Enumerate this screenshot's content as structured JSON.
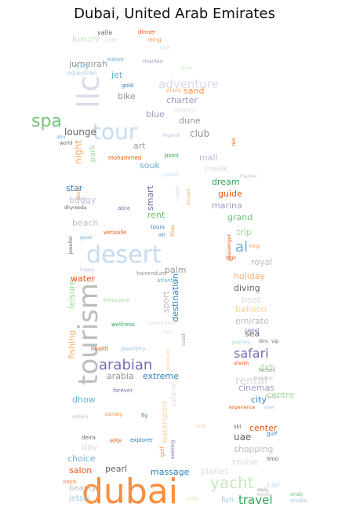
{
  "title": "Dubai, United Arab Emirates",
  "words": [
    {
      "t": "dubai",
      "c": "#fd8d3c"
    },
    {
      "t": "tourism",
      "c": "#bdbdbd"
    },
    {
      "t": "desert",
      "c": "#c6dbef"
    },
    {
      "t": "tour",
      "c": "#c6dbef"
    },
    {
      "t": "llc",
      "c": "#dadaeb"
    },
    {
      "t": "spa",
      "c": "#74c476"
    },
    {
      "t": "yacht",
      "c": "#c7e9c0"
    },
    {
      "t": "arabian",
      "c": "#756bb1"
    },
    {
      "t": "safari",
      "c": "#756bb1"
    },
    {
      "t": "adventure",
      "c": "#dadaeb"
    },
    {
      "t": "travel",
      "c": "#31a354"
    },
    {
      "t": "al",
      "c": "#6baed6"
    },
    {
      "t": "rental",
      "c": "#d9d9d9"
    },
    {
      "t": "jumeirah",
      "c": "#969696"
    },
    {
      "t": "luxury",
      "c": "#c7e9c0"
    },
    {
      "t": "sky",
      "c": "#9ecae1"
    },
    {
      "t": "jet",
      "c": "#6baed6"
    },
    {
      "t": "bike",
      "c": "#969696"
    },
    {
      "t": "charter",
      "c": "#9e9ac8"
    },
    {
      "t": "sand",
      "c": "#fd8d3c"
    },
    {
      "t": "blue",
      "c": "#9e9ac8"
    },
    {
      "t": "dune",
      "c": "#969696"
    },
    {
      "t": "club",
      "c": "#969696"
    },
    {
      "t": "lounge",
      "c": "#636363"
    },
    {
      "t": "night",
      "c": "#fdae6b"
    },
    {
      "t": "park",
      "c": "#a1d99b"
    },
    {
      "t": "art",
      "c": "#969696"
    },
    {
      "t": "souk",
      "c": "#6baed6"
    },
    {
      "t": "mall",
      "c": "#bcbddc"
    },
    {
      "t": "creek",
      "c": "#d9d9d9"
    },
    {
      "t": "dream",
      "c": "#31a354"
    },
    {
      "t": "guide",
      "c": "#e6550d"
    },
    {
      "t": "star",
      "c": "#3182bd"
    },
    {
      "t": "buggy",
      "c": "#bcbddc"
    },
    {
      "t": "smart",
      "c": "#756bb1"
    },
    {
      "t": "rent",
      "c": "#74c476"
    },
    {
      "t": "marina",
      "c": "#9e9ac8"
    },
    {
      "t": "grand",
      "c": "#74c476"
    },
    {
      "t": "beach",
      "c": "#bdbdbd"
    },
    {
      "t": "trip",
      "c": "#a1d99b"
    },
    {
      "t": "palm",
      "c": "#969696"
    },
    {
      "t": "royal",
      "c": "#bdbdbd"
    },
    {
      "t": "water",
      "c": "#e6550d"
    },
    {
      "t": "holiday",
      "c": "#fdae6b"
    },
    {
      "t": "diving",
      "c": "#636363"
    },
    {
      "t": "boat",
      "c": "#d9d9d9"
    },
    {
      "t": "balloon",
      "c": "#fdd0a2"
    },
    {
      "t": "emirate",
      "c": "#bdbdbd"
    },
    {
      "t": "sea",
      "c": "#636363"
    },
    {
      "t": "leisure",
      "c": "#a1d99b"
    },
    {
      "t": "sport",
      "c": "#bdbdbd"
    },
    {
      "t": "destination",
      "c": "#3182bd"
    },
    {
      "t": "fishing",
      "c": "#fdae6b"
    },
    {
      "t": "arabia",
      "c": "#969696"
    },
    {
      "t": "extreme",
      "c": "#3182bd"
    },
    {
      "t": "dxb",
      "c": "#a1d99b"
    },
    {
      "t": "cinemas",
      "c": "#9e9ac8"
    },
    {
      "t": "city",
      "c": "#3182bd"
    },
    {
      "t": "centre",
      "c": "#a1d99b"
    },
    {
      "t": "center",
      "c": "#e6550d"
    },
    {
      "t": "dhow",
      "c": "#6baed6"
    },
    {
      "t": "uae",
      "c": "#636363"
    },
    {
      "t": "day",
      "c": "#dadaeb"
    },
    {
      "t": "shopping",
      "c": "#bdbdbd"
    },
    {
      "t": "choice",
      "c": "#6baed6"
    },
    {
      "t": "cruise",
      "c": "#d9d9d9"
    },
    {
      "t": "salon",
      "c": "#e6550d"
    },
    {
      "t": "pearl",
      "c": "#636363"
    },
    {
      "t": "massage",
      "c": "#3182bd"
    },
    {
      "t": "planet",
      "c": "#dadaeb"
    },
    {
      "t": "car",
      "c": "#c6dbef"
    },
    {
      "t": "beauty",
      "c": "#bdbdbd"
    },
    {
      "t": "jetski",
      "c": "#9ecae1"
    },
    {
      "t": "fun",
      "c": "#9ecae1"
    },
    {
      "t": "watersport",
      "c": "#fdd0a2"
    },
    {
      "t": "safaris",
      "c": "#dadaeb"
    },
    {
      "t": "yalla",
      "c": "#636363"
    },
    {
      "t": "dinner",
      "c": "#e6550d"
    },
    {
      "t": "june",
      "c": "#d9d9d9"
    },
    {
      "t": "ming",
      "c": "#fd8d3c"
    },
    {
      "t": "kite",
      "c": "#c6dbef"
    },
    {
      "t": "indoor",
      "c": "#6baed6"
    },
    {
      "t": "equestrian",
      "c": "#9ecae1"
    },
    {
      "t": "manlax",
      "c": "#9e9ac8"
    },
    {
      "t": "quad",
      "c": "#c7e9c0"
    },
    {
      "t": "gold",
      "c": "#3182bd"
    },
    {
      "t": "plaza",
      "c": "#fdae6b"
    },
    {
      "t": "company",
      "c": "#d9d9d9"
    },
    {
      "t": "legend",
      "c": "#bcbddc"
    },
    {
      "t": "red",
      "c": "#e6550d"
    },
    {
      "t": "abu",
      "c": "#6baed6"
    },
    {
      "t": "world",
      "c": "#636363"
    },
    {
      "t": "marine",
      "c": "#bdbdbd"
    },
    {
      "t": "mohammed",
      "c": "#e6550d"
    },
    {
      "t": "point",
      "c": "#31a354"
    },
    {
      "t": "golden",
      "c": "#c6dbef"
    },
    {
      "t": "couple",
      "c": "#d9d9d9"
    },
    {
      "t": "escape",
      "c": "#fdae6b"
    },
    {
      "t": "seven",
      "c": "#fd8d3c"
    },
    {
      "t": "burj",
      "c": "#bdbdbd"
    },
    {
      "t": "abra",
      "c": "#756bb1"
    },
    {
      "t": "dhyreeda",
      "c": "#636363"
    },
    {
      "t": "tours",
      "c": "#3182bd"
    },
    {
      "t": "air",
      "c": "#3182bd"
    },
    {
      "t": "khan",
      "c": "#fd8d3c"
    },
    {
      "t": "versaille",
      "c": "#e6550d"
    },
    {
      "t": "good",
      "c": "#6baed6"
    },
    {
      "t": "jeweller",
      "c": "#636363"
    },
    {
      "t": "zoassenger",
      "c": "#e6550d"
    },
    {
      "t": "king",
      "c": "#fd8d3c"
    },
    {
      "t": "high",
      "c": "#e6550d"
    },
    {
      "t": "happy",
      "c": "#bcbddc"
    },
    {
      "t": "hairenduro",
      "c": "#969696"
    },
    {
      "t": "atlantis",
      "c": "#6baed6"
    },
    {
      "t": "limousine",
      "c": "#a1d99b"
    },
    {
      "t": "wellness",
      "c": "#31a354"
    },
    {
      "t": "connection",
      "c": "#d9d9d9"
    },
    {
      "t": "roya",
      "c": "#d9d9d9"
    },
    {
      "t": "camel",
      "c": "#756bb1"
    },
    {
      "t": "journey",
      "c": "#9ecae1"
    },
    {
      "t": "dmc",
      "c": "#636363"
    },
    {
      "t": "vip",
      "c": "#636363"
    },
    {
      "t": "health",
      "c": "#e6550d"
    },
    {
      "t": "jewellery",
      "c": "#9ecae1"
    },
    {
      "t": "coast",
      "c": "#969696"
    },
    {
      "t": "premium",
      "c": "#fdd0a2"
    },
    {
      "t": "sheikh",
      "c": "#e6550d"
    },
    {
      "t": "factory",
      "c": "#969696"
    },
    {
      "t": "mosque",
      "c": "#bdbdbd"
    },
    {
      "t": "forever",
      "c": "#756bb1"
    },
    {
      "t": "falcon",
      "c": "#bdbdbd"
    },
    {
      "t": "experience",
      "c": "#e6550d"
    },
    {
      "t": "view",
      "c": "#9ecae1"
    },
    {
      "t": "conwy",
      "c": "#fd8d3c"
    },
    {
      "t": "fly",
      "c": "#3182bd"
    },
    {
      "t": "gallery",
      "c": "#bcbddc"
    },
    {
      "t": "ski",
      "c": "#636363"
    },
    {
      "t": "gulf",
      "c": "#3182bd"
    },
    {
      "t": "deira",
      "c": "#636363"
    },
    {
      "t": "elite",
      "c": "#e6550d"
    },
    {
      "t": "explorer",
      "c": "#3182bd"
    },
    {
      "t": "golf",
      "c": "#fd8d3c"
    },
    {
      "t": "evening",
      "c": "#756bb1"
    },
    {
      "t": "limo",
      "c": "#636363"
    },
    {
      "t": "oasis",
      "c": "#fd8d3c"
    },
    {
      "t": "daily",
      "c": "#969696"
    },
    {
      "t": "hotel",
      "c": "#bdbdbd"
    },
    {
      "t": "arab",
      "c": "#74c476"
    },
    {
      "t": "studio",
      "c": "#9ecae1"
    },
    {
      "t": "zone",
      "c": "#fdd0a2"
    },
    {
      "t": "lady",
      "c": "#fdd0a2"
    }
  ]
}
